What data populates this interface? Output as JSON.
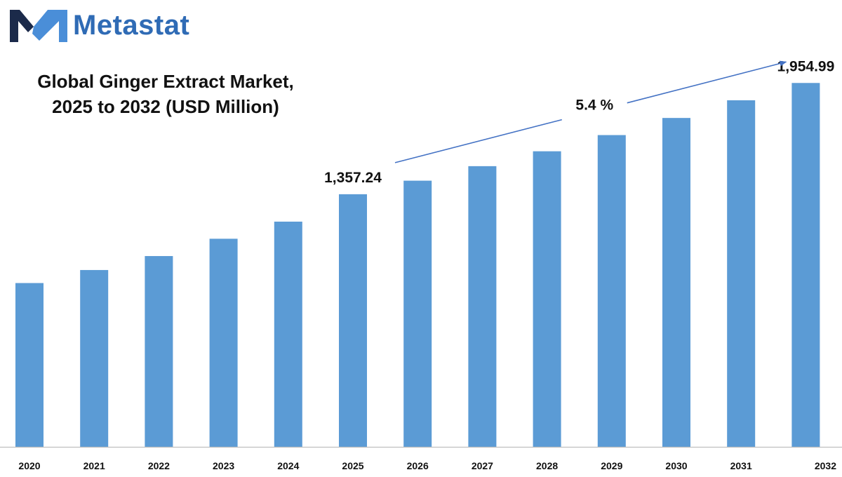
{
  "brand": {
    "name": "Metastat",
    "text_color": "#2F6BB5",
    "mark_colors": {
      "left": "#1B2A4A",
      "right": "#4A8ED8"
    },
    "mark_icon": "metastat-m-logo-icon"
  },
  "chart_data": {
    "type": "bar",
    "title_lines": [
      "Global Ginger Extract Market,",
      "2025 to 2032 (USD Million)"
    ],
    "categories": [
      "2020",
      "2021",
      "2022",
      "2023",
      "2024",
      "2025",
      "2026",
      "2027",
      "2028",
      "2029",
      "2030",
      "2031",
      "2032"
    ],
    "series": [
      {
        "values": [
          880,
          950,
          1025,
          1118,
          1210,
          1357.24,
          1430,
          1508,
          1588,
          1675,
          1767,
          1862,
          1954.99
        ],
        "color": "#5B9BD5"
      }
    ],
    "data_labels": [
      {
        "category": "2025",
        "text": "1,357.24"
      },
      {
        "category": "2032",
        "text": "1,954.99"
      }
    ],
    "cagr": {
      "text": "5.4 %",
      "from": "2025",
      "to": "2032"
    },
    "arrow_color": "#4472C4",
    "xlabel": "",
    "ylabel": "",
    "ylim": [
      0,
      2250
    ],
    "grid": false,
    "legend": "none"
  }
}
